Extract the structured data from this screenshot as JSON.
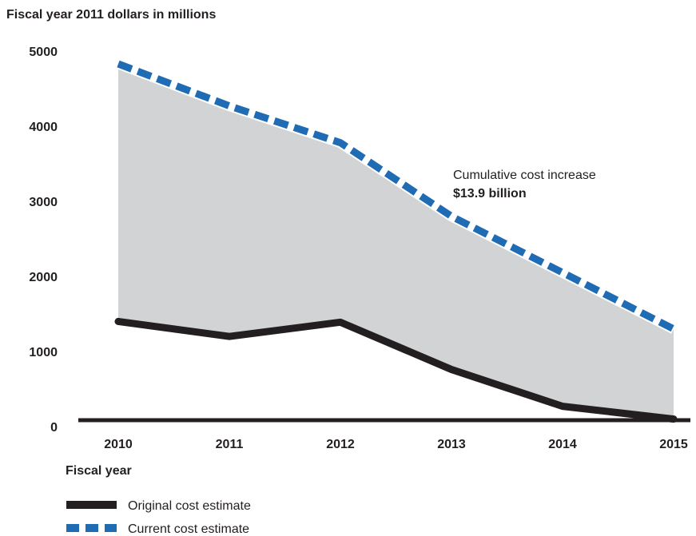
{
  "chart_data": {
    "type": "area",
    "y_axis_title": "Fiscal year 2011 dollars in millions",
    "x_axis_title": "Fiscal year",
    "categories": [
      "2010",
      "2011",
      "2012",
      "2013",
      "2014",
      "2015"
    ],
    "y_ticks": [
      "0",
      "1000",
      "2000",
      "3000",
      "4000",
      "5000"
    ],
    "ylim": [
      0,
      5000
    ],
    "grid": false,
    "series": [
      {
        "name": "Original cost estimate",
        "values": [
          1400,
          1200,
          1390,
          760,
          270,
          100
        ],
        "color": "#231f20",
        "style": "solid"
      },
      {
        "name": "Current cost estimate",
        "values": [
          4830,
          4270,
          3780,
          2800,
          2050,
          1300
        ],
        "color": "#1f6cb4",
        "style": "dashed"
      }
    ],
    "fill_between_color": "#d1d3d4",
    "annotation": {
      "line1": "Cumulative cost increase",
      "line2": "$13.9 billion"
    },
    "legend_position": "bottom-left"
  }
}
